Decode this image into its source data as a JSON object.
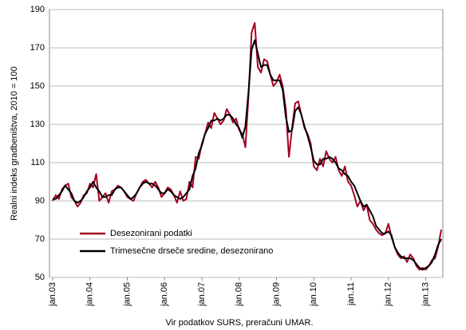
{
  "chart_data": {
    "type": "line",
    "y_label": "Realni indeks gradbeništva, 2010 = 100",
    "source": "Vir podatkov SURS, preračuni UMAR.",
    "categories": [
      "jan.03",
      null,
      null,
      null,
      null,
      null,
      null,
      null,
      null,
      null,
      null,
      null,
      "jan.04",
      null,
      null,
      null,
      null,
      null,
      null,
      null,
      null,
      null,
      null,
      null,
      "jan.05",
      null,
      null,
      null,
      null,
      null,
      null,
      null,
      null,
      null,
      null,
      null,
      "jan.06",
      null,
      null,
      null,
      null,
      null,
      null,
      null,
      null,
      null,
      null,
      null,
      "jan.07",
      null,
      null,
      null,
      null,
      null,
      null,
      null,
      null,
      null,
      null,
      null,
      "jan.08",
      null,
      null,
      null,
      null,
      null,
      null,
      null,
      null,
      null,
      null,
      null,
      "jan.09",
      null,
      null,
      null,
      null,
      null,
      null,
      null,
      null,
      null,
      null,
      null,
      "jan.10",
      null,
      null,
      null,
      null,
      null,
      null,
      null,
      null,
      null,
      null,
      null,
      "jan.11",
      null,
      null,
      null,
      null,
      null,
      null,
      null,
      null,
      null,
      null,
      null,
      "jan.12",
      null,
      null,
      null,
      null,
      null,
      null,
      null,
      null,
      null,
      null,
      null,
      "jan.13",
      null,
      null,
      null,
      null,
      null
    ],
    "series": [
      {
        "name": "Desezonirani podatki",
        "color": "#a50021",
        "width": 2,
        "values": [
          90,
          93,
          91,
          96,
          98,
          99,
          92,
          90,
          87,
          89,
          93,
          94,
          99,
          97,
          104,
          90,
          92,
          94,
          89,
          95,
          96,
          98,
          97,
          95,
          92,
          91,
          90,
          94,
          97,
          100,
          101,
          99,
          97,
          100,
          97,
          92,
          94,
          97,
          96,
          93,
          89,
          95,
          90,
          91,
          100,
          97,
          113,
          112,
          120,
          125,
          131,
          128,
          136,
          133,
          130,
          132,
          138,
          135,
          131,
          133,
          127,
          125,
          118,
          145,
          178,
          183,
          160,
          157,
          164,
          163,
          156,
          150,
          152,
          156,
          150,
          138,
          113,
          128,
          141,
          142,
          135,
          128,
          125,
          120,
          108,
          106,
          112,
          108,
          116,
          112,
          110,
          113,
          106,
          103,
          108,
          100,
          98,
          93,
          87,
          90,
          85,
          88,
          80,
          78,
          75,
          73,
          72,
          73,
          78,
          71,
          66,
          62,
          60,
          61,
          58,
          62,
          60,
          56,
          54,
          55,
          54,
          56,
          59,
          60,
          66,
          75
        ]
      },
      {
        "name": "Trimesečne drseče sredine, desezonirano",
        "color": "#000000",
        "width": 2,
        "values": [
          91,
          91,
          93,
          95,
          98,
          96,
          94,
          90,
          89,
          90,
          92,
          95,
          97,
          100,
          97,
          95,
          92,
          92,
          93,
          93,
          96,
          97,
          97,
          95,
          93,
          91,
          92,
          94,
          97,
          99,
          100,
          99,
          99,
          98,
          96,
          94,
          94,
          96,
          95,
          93,
          92,
          91,
          92,
          94,
          96,
          103,
          107,
          115,
          119,
          125,
          128,
          132,
          132,
          133,
          132,
          133,
          135,
          135,
          133,
          130,
          128,
          123,
          129,
          147,
          169,
          174,
          167,
          160,
          161,
          161,
          156,
          153,
          153,
          153,
          148,
          134,
          126,
          127,
          137,
          139,
          135,
          129,
          124,
          118,
          111,
          109,
          109,
          112,
          112,
          113,
          112,
          110,
          107,
          106,
          104,
          103,
          100,
          98,
          94,
          90,
          87,
          88,
          85,
          82,
          77,
          75,
          73,
          73,
          74,
          72,
          66,
          63,
          61,
          60,
          60,
          60,
          59,
          57,
          55,
          54,
          55,
          56,
          58,
          62,
          67,
          70
        ]
      }
    ],
    "ylim": [
      50,
      190
    ],
    "yticks": [
      50,
      70,
      90,
      110,
      130,
      150,
      170,
      190
    ],
    "grid": true
  }
}
